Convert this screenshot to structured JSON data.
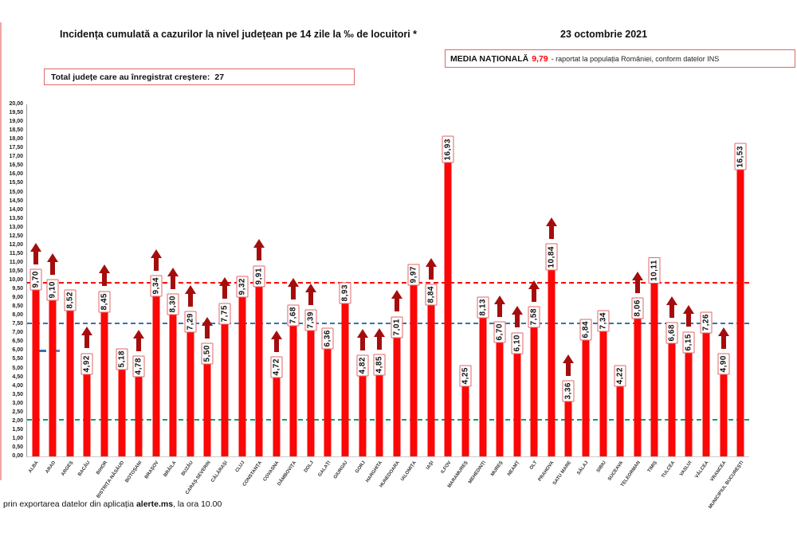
{
  "title": "Incidența cumulată a cazurilor la nivel județean pe 14 zile la ‰ de locuitori *",
  "date": "23 octombrie 2021",
  "national_average": {
    "label": "MEDIA NAȚIONALĂ",
    "value": "9,79",
    "note": "-  raportat la populația României, conform datelor INS"
  },
  "total_increase": {
    "label": "Total județe care au înregistrat creștere:",
    "count": "27"
  },
  "footer": {
    "prefix": "prin exportarea datelor din aplicația ",
    "app": "alerte.ms",
    "suffix": ", la ora 10.00"
  },
  "chart_data": {
    "type": "bar",
    "title": "Incidența cumulată a cazurilor la nivel județean pe 14 zile la ‰ de locuitori *",
    "xlabel": "",
    "ylabel": "",
    "ylim": [
      0,
      20
    ],
    "ytick_step": 0.5,
    "grid": false,
    "bar_color": "#fb0707",
    "value_label_border": "#e06666",
    "increase_arrow_color": "#a50d0d",
    "yticks": [
      "20,00",
      "19,50",
      "19,00",
      "18,50",
      "18,00",
      "17,50",
      "17,00",
      "16,50",
      "16,00",
      "15,50",
      "15,00",
      "14,50",
      "14,00",
      "13,50",
      "13,00",
      "12,50",
      "12,00",
      "11,50",
      "11,00",
      "10,50",
      "10,00",
      "9,50",
      "9,00",
      "8,50",
      "8,00",
      "7,50",
      "7,00",
      "6,50",
      "6,00",
      "5,50",
      "5,00",
      "4,50",
      "4,00",
      "3,50",
      "3,00",
      "2,50",
      "2,00",
      "1,50",
      "1,00",
      "0,50",
      "0,00"
    ],
    "reference_lines": [
      {
        "name": "media-nationala-line",
        "value": 9.79,
        "color": "#ff0000",
        "style": "dashed",
        "thickness": 2.5
      },
      {
        "name": "threshold-7-5-line",
        "value": 7.5,
        "color": "#2e75b6",
        "style": "dashed",
        "thickness": 2.5
      },
      {
        "name": "threshold-2-line",
        "value": 2.0,
        "color": "#00a651",
        "style": "dashed",
        "thickness": 2.5
      }
    ],
    "left_markers": [
      {
        "name": "blue-dash-marker",
        "value": 6.0,
        "color": "#2e75b6",
        "x": 10,
        "width": 14
      },
      {
        "name": "blue-dot-marker",
        "value": 6.0,
        "color": "#5b7fc7",
        "x": 36,
        "width": 5
      }
    ],
    "counties": [
      {
        "name": "ALBA",
        "display": "9,70",
        "value": 9.7,
        "increase": true
      },
      {
        "name": "ARAD",
        "display": "9,10",
        "value": 9.1,
        "increase": true
      },
      {
        "name": "ARGEȘ",
        "display": "8,52",
        "value": 8.52,
        "increase": false
      },
      {
        "name": "BACĂU",
        "display": "4,92",
        "value": 4.92,
        "increase": true
      },
      {
        "name": "BIHOR",
        "display": "8,45",
        "value": 8.45,
        "increase": true
      },
      {
        "name": "BISTRIȚA-NĂSĂUD",
        "display": "5,18",
        "value": 5.18,
        "increase": false
      },
      {
        "name": "BOTOȘANI",
        "display": "4,78",
        "value": 4.78,
        "increase": true
      },
      {
        "name": "BRAȘOV",
        "display": "9,34",
        "value": 9.34,
        "increase": true
      },
      {
        "name": "BRĂILA",
        "display": "8,30",
        "value": 8.3,
        "increase": true
      },
      {
        "name": "BUZĂU",
        "display": "7,29",
        "value": 7.29,
        "increase": true
      },
      {
        "name": "CARAȘ-SEVERIN",
        "display": "5,50",
        "value": 5.5,
        "increase": true
      },
      {
        "name": "CĂLĂRAȘI",
        "display": "7,75",
        "value": 7.75,
        "increase": true
      },
      {
        "name": "CLUJ",
        "display": "9,32",
        "value": 9.32,
        "increase": false
      },
      {
        "name": "CONSTANȚA",
        "display": "9,91",
        "value": 9.91,
        "increase": true
      },
      {
        "name": "COVASNA",
        "display": "4,72",
        "value": 4.72,
        "increase": true
      },
      {
        "name": "DÂMBOVIȚA",
        "display": "7,68",
        "value": 7.68,
        "increase": true
      },
      {
        "name": "DOLJ",
        "display": "7,39",
        "value": 7.39,
        "increase": true
      },
      {
        "name": "GALAȚI",
        "display": "6,36",
        "value": 6.36,
        "increase": false
      },
      {
        "name": "GIURGIU",
        "display": "8,93",
        "value": 8.93,
        "increase": false
      },
      {
        "name": "GORJ",
        "display": "4,82",
        "value": 4.82,
        "increase": true
      },
      {
        "name": "HARGHITA",
        "display": "4,85",
        "value": 4.85,
        "increase": true
      },
      {
        "name": "HUNEDOARA",
        "display": "7,01",
        "value": 7.01,
        "increase": true
      },
      {
        "name": "IALOMIȚA",
        "display": "9,97",
        "value": 9.97,
        "increase": false
      },
      {
        "name": "IAȘI",
        "display": "8,84",
        "value": 8.84,
        "increase": true
      },
      {
        "name": "ILFOV",
        "display": "16,93",
        "value": 16.93,
        "increase": false
      },
      {
        "name": "MARAMUREȘ",
        "display": "4,25",
        "value": 4.25,
        "increase": false
      },
      {
        "name": "MEHEDINȚI",
        "display": "8,13",
        "value": 8.13,
        "increase": false
      },
      {
        "name": "MUREȘ",
        "display": "6,70",
        "value": 6.7,
        "increase": true
      },
      {
        "name": "NEAMȚ",
        "display": "6,10",
        "value": 6.1,
        "increase": true
      },
      {
        "name": "OLT",
        "display": "7,58",
        "value": 7.58,
        "increase": true
      },
      {
        "name": "PRAHOVA",
        "display": "10,84",
        "value": 10.84,
        "increase": true
      },
      {
        "name": "SATU MARE",
        "display": "3,36",
        "value": 3.36,
        "increase": true
      },
      {
        "name": "SĂLAJ",
        "display": "6,84",
        "value": 6.84,
        "increase": false
      },
      {
        "name": "SIBIU",
        "display": "7,34",
        "value": 7.34,
        "increase": false
      },
      {
        "name": "SUCEAVA",
        "display": "4,22",
        "value": 4.22,
        "increase": false
      },
      {
        "name": "TELEORMAN",
        "display": "8,06",
        "value": 8.06,
        "increase": true
      },
      {
        "name": "TIMIȘ",
        "display": "10,11",
        "value": 10.11,
        "increase": false
      },
      {
        "name": "TULCEA",
        "display": "6,68",
        "value": 6.68,
        "increase": true
      },
      {
        "name": "VASLUI",
        "display": "6,15",
        "value": 6.15,
        "increase": true
      },
      {
        "name": "VÂLCEA",
        "display": "7,26",
        "value": 7.26,
        "increase": false
      },
      {
        "name": "VRANCEA",
        "display": "4,90",
        "value": 4.9,
        "increase": true
      },
      {
        "name": "MUNICIPIUL BUCUREȘTI",
        "display": "16,53",
        "value": 16.53,
        "increase": false
      }
    ]
  }
}
